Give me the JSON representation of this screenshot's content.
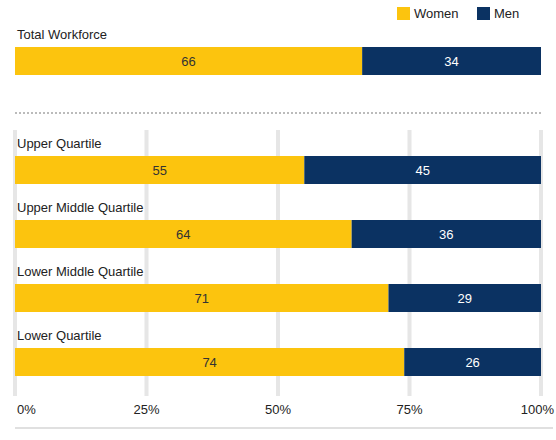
{
  "chart_data": {
    "type": "bar",
    "orientation": "horizontal",
    "stacked": true,
    "data_labels": true,
    "grid": true,
    "legend": "top-right",
    "categories": [
      "Total Workforce",
      "Upper Quartile",
      "Upper Middle Quartile",
      "Lower Middle Quartile",
      "Lower Quartile"
    ],
    "series": [
      {
        "name": "Women",
        "color": "#fcc40e",
        "values": [
          66,
          55,
          64,
          71,
          74
        ]
      },
      {
        "name": "Men",
        "color": "#0b3262",
        "values": [
          34,
          45,
          36,
          29,
          26
        ]
      }
    ],
    "xlim": [
      0,
      100
    ],
    "xticks": [
      {
        "value": 0,
        "label": "0%"
      },
      {
        "value": 25,
        "label": "25%"
      },
      {
        "value": 50,
        "label": "50%"
      },
      {
        "value": 75,
        "label": "75%"
      },
      {
        "value": 100,
        "label": "100%"
      }
    ]
  }
}
